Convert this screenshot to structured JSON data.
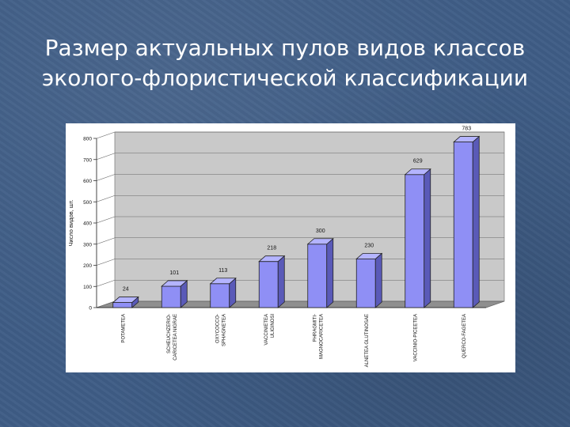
{
  "slide": {
    "title_line1": "Размер актуальных пулов видов классов",
    "title_line2": "эколого-флористической классификации"
  },
  "colors": {
    "background": "#3f5d86",
    "bar_front": "#8f8ff5",
    "bar_side": "#5a5ab8",
    "bar_top": "#b4b4ff",
    "plot_wall": "#c9c9c9",
    "plot_floor": "#8f8f8f"
  },
  "chart_data": {
    "type": "bar",
    "ylabel": "Число видов, шт.",
    "ylim": [
      0,
      800
    ],
    "yticks": [
      0,
      100,
      200,
      300,
      400,
      500,
      600,
      700,
      800
    ],
    "categories": [
      "POTAMETEA",
      "SCHEUCHZERIO-CARICETEA NIGRAE",
      "OXYCOCCO-SPHAGNETEA",
      "VACCINIETEA ULIGINOSI",
      "PHRAGMITI-MAGNOCARICETEA",
      "ALNETEA GLUTINOSAE",
      "VACCINIO-PICEETEA",
      "QUERCO-FAGETEA"
    ],
    "category_lines": [
      [
        "POTAMETEA"
      ],
      [
        "SCHEUCHZERIO-",
        "CARICETEA NIGRAE"
      ],
      [
        "OXYCOCCO-",
        "SPHAGNETEA"
      ],
      [
        "VACCINIETEA",
        "ULIGINOSI"
      ],
      [
        "PHRAGMITI-",
        "MAGNOCARICETEA"
      ],
      [
        "ALNETEA GLUTINOSAE"
      ],
      [
        "VACCINIO-PICEETEA"
      ],
      [
        "QUERCO-FAGETEA"
      ]
    ],
    "values": [
      24,
      101,
      113,
      218,
      300,
      230,
      629,
      783
    ],
    "grid": true,
    "legend": "none"
  }
}
